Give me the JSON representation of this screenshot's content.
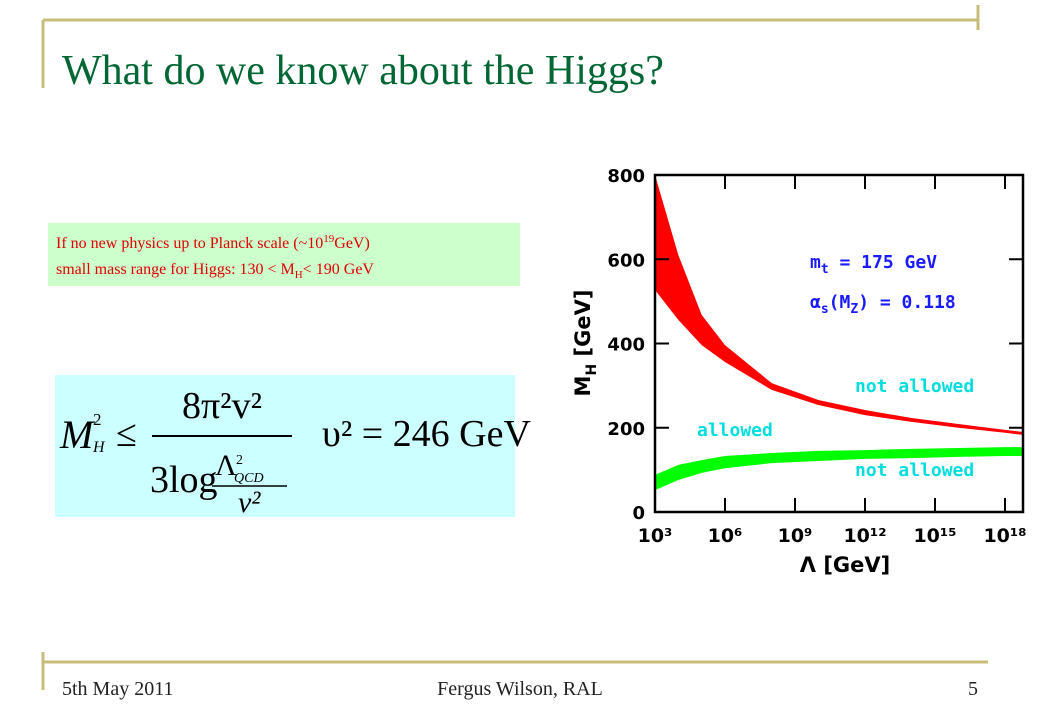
{
  "header": {
    "title": "What do we know about the Higgs?"
  },
  "note": {
    "line1": {
      "text": "If no new physics up to Planck scale (~10",
      "sup": "19",
      "rest": "GeV)"
    },
    "line2": {
      "text": "small mass range for Higgs: 130 < M",
      "sub": "H",
      "rest": "< 190 GeV"
    }
  },
  "formula": {
    "lhs": "M",
    "lhs_sup": "2",
    "lhs_sub": "H",
    "relation": "≤",
    "numerator": "8π²v²",
    "denominator": "3log",
    "inner_top": "Λ",
    "inner_top_sub": "QCD",
    "inner_top_sup": "2",
    "inner_bottom": "v²",
    "rhs": "υ² = 246 GeV"
  },
  "chart_data": {
    "type": "band",
    "x_label": {
      "text": "Λ [GeV]"
    },
    "y_label": {
      "text": "M",
      "sub": "H",
      "rest": " [GeV]"
    },
    "x": [
      1000,
      10000,
      100000,
      1000000,
      100000000,
      10000000000,
      1000000000000,
      100000000000000,
      10000000000000000,
      1000000000000000000,
      5900000000000000000
    ],
    "xlim": [
      1000,
      5900000000000000000
    ],
    "log_x": true,
    "xticks": [
      {
        "value": 1000,
        "label": "10³"
      },
      {
        "value": 1000000,
        "label": "10⁶"
      },
      {
        "value": 1000000000,
        "label": "10⁹"
      },
      {
        "value": 1000000000000,
        "label": "10¹²"
      },
      {
        "value": 1000000000000000,
        "label": "10¹⁵"
      },
      {
        "value": 1000000000000000000,
        "label": "10¹⁸"
      }
    ],
    "ylim": [
      0,
      800
    ],
    "yticks": [
      0,
      200,
      400,
      600,
      800
    ],
    "series": [
      {
        "color": "#ff0000",
        "high": [
          800,
          610,
          468,
          396,
          306,
          266,
          242,
          223,
          209,
          195,
          190
        ],
        "low": [
          527,
          456,
          396,
          356,
          290,
          254,
          230,
          214,
          200,
          188,
          183
        ]
      },
      {
        "color": "#00ff00",
        "high": [
          88,
          112,
          123,
          133,
          140,
          145,
          147,
          150,
          152,
          154,
          154
        ],
        "low": [
          52,
          76,
          93,
          104,
          116,
          121,
          126,
          128,
          131,
          133,
          133
        ]
      }
    ],
    "annotations": [
      {
        "text": "m",
        "sub": "t",
        "rest": " = 175 GeV"
      },
      {
        "text": "α",
        "sub": "s",
        "rest": "(M",
        "sub2": "Z",
        "rest2": ") = 0.118"
      },
      {
        "text": "not allowed"
      },
      {
        "text": "allowed"
      },
      {
        "text": "not allowed"
      }
    ]
  },
  "footer": {
    "date": "5th May 2011",
    "author": "Fergus Wilson, RAL",
    "page": "5"
  }
}
